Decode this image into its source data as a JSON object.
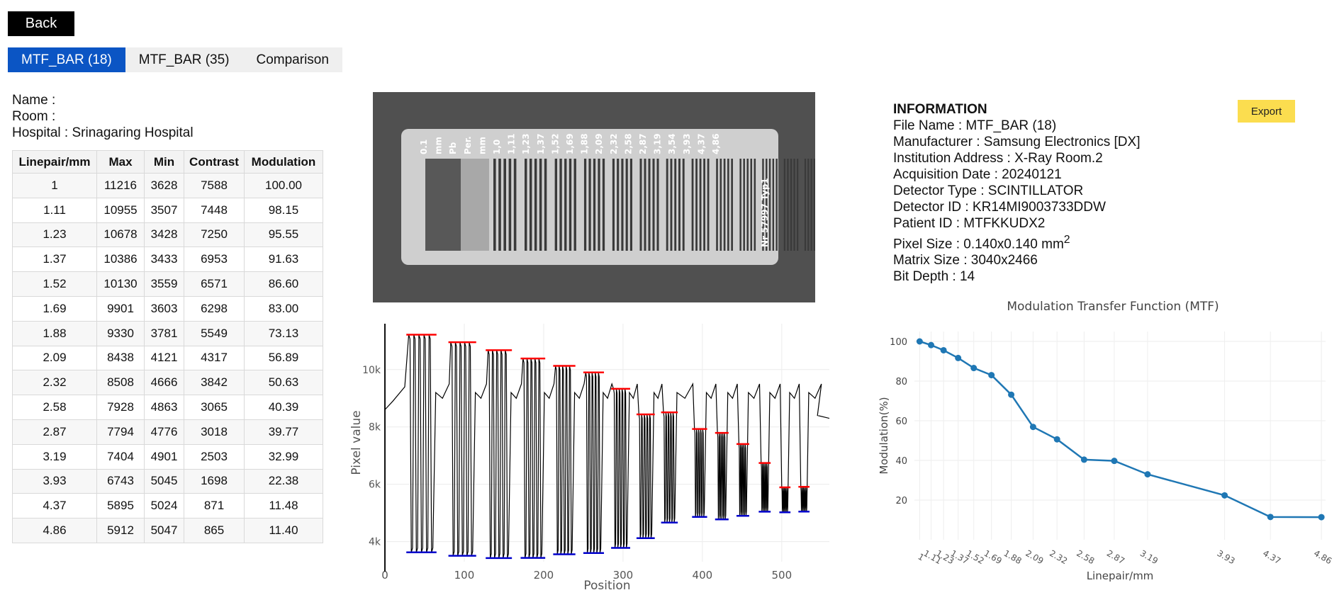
{
  "nav": {
    "back_label": "Back"
  },
  "tabs": [
    {
      "label": "MTF_BAR (18)",
      "active": true
    },
    {
      "label": "MTF_BAR (35)",
      "active": false
    },
    {
      "label": "Comparison",
      "active": false
    }
  ],
  "subject": {
    "name_line": "Name :",
    "room_line": "Room :",
    "hospital_line": "Hospital : Srinagaring Hospital"
  },
  "results_table": {
    "headers": [
      "Linepair/mm",
      "Max",
      "Min",
      "Contrast",
      "Modulation"
    ],
    "rows": [
      [
        "1",
        "11216",
        "3628",
        "7588",
        "100.00"
      ],
      [
        "1.11",
        "10955",
        "3507",
        "7448",
        "98.15"
      ],
      [
        "1.23",
        "10678",
        "3428",
        "7250",
        "95.55"
      ],
      [
        "1.37",
        "10386",
        "3433",
        "6953",
        "91.63"
      ],
      [
        "1.52",
        "10130",
        "3559",
        "6571",
        "86.60"
      ],
      [
        "1.69",
        "9901",
        "3603",
        "6298",
        "83.00"
      ],
      [
        "1.88",
        "9330",
        "3781",
        "5549",
        "73.13"
      ],
      [
        "2.09",
        "8438",
        "4121",
        "4317",
        "56.89"
      ],
      [
        "2.32",
        "8508",
        "4666",
        "3842",
        "50.63"
      ],
      [
        "2.58",
        "7928",
        "4863",
        "3065",
        "40.39"
      ],
      [
        "2.87",
        "7794",
        "4776",
        "3018",
        "39.77"
      ],
      [
        "3.19",
        "7404",
        "4901",
        "2503",
        "32.99"
      ],
      [
        "3.93",
        "6743",
        "5045",
        "1698",
        "22.38"
      ],
      [
        "4.37",
        "5895",
        "5024",
        "871",
        "11.48"
      ],
      [
        "4.86",
        "5912",
        "5047",
        "865",
        "11.40"
      ]
    ]
  },
  "phantom_image": {
    "labels": [
      "0.1",
      "mm",
      "Pb",
      "Per.",
      "mm",
      "1,0",
      "1,11",
      "1,23",
      "1,37",
      "1,52",
      "1,69",
      "1,88",
      "2,09",
      "2,32",
      "2,58",
      "2,87",
      "3,19",
      "3,54",
      "3,93",
      "4,37",
      "4,86"
    ],
    "side_label_1": "Typ1",
    "side_label_2": "Nr 57997"
  },
  "information": {
    "title": "INFORMATION",
    "file_name": "File Name : MTF_BAR (18)",
    "manufacturer": "Manufacturer : Samsung Electronics [DX]",
    "institution": "Institution Address : X-Ray Room.2",
    "acquisition_date": "Acquisition Date : 20240121",
    "detector_type": "Detector Type : SCINTILLATOR",
    "detector_id": "Detector ID : KR14MI9003733DDW",
    "patient_id": "Patient ID : MTFKKUDX2",
    "pixel_size": "Pixel Size : 0.140x0.140 mm",
    "pixel_size_sup": "2",
    "matrix_size": "Matrix Size : 3040x2466",
    "bit_depth": "Bit Depth : 14",
    "export_label": "Export"
  },
  "chart_data": [
    {
      "type": "line",
      "title": "",
      "xlabel": "Position",
      "ylabel": "Pixel value",
      "xlim": [
        0,
        560
      ],
      "ylim": [
        3300,
        11600
      ],
      "x_ticks": [
        0,
        100,
        200,
        300,
        400,
        500
      ],
      "x_tick_labels": [
        "0",
        "100",
        "200",
        "300",
        "400",
        "500"
      ],
      "y_ticks": [
        4000,
        6000,
        8000,
        10000
      ],
      "y_tick_labels": [
        "4k",
        "6k",
        "8k",
        "10k"
      ],
      "grid": true,
      "legend": "none",
      "groups": [
        {
          "x_start": 30,
          "x_end": 62,
          "bars": 5,
          "max": 11216,
          "min": 3628
        },
        {
          "x_start": 83,
          "x_end": 112,
          "bars": 5,
          "max": 10955,
          "min": 3507
        },
        {
          "x_start": 130,
          "x_end": 157,
          "bars": 5,
          "max": 10678,
          "min": 3428
        },
        {
          "x_start": 174,
          "x_end": 199,
          "bars": 5,
          "max": 10386,
          "min": 3433
        },
        {
          "x_start": 215,
          "x_end": 237,
          "bars": 5,
          "max": 10130,
          "min": 3559
        },
        {
          "x_start": 253,
          "x_end": 273,
          "bars": 5,
          "max": 9901,
          "min": 3603
        },
        {
          "x_start": 288,
          "x_end": 306,
          "bars": 5,
          "max": 9330,
          "min": 3781
        },
        {
          "x_start": 320,
          "x_end": 337,
          "bars": 5,
          "max": 8438,
          "min": 4121
        },
        {
          "x_start": 351,
          "x_end": 366,
          "bars": 5,
          "max": 8508,
          "min": 4666
        },
        {
          "x_start": 390,
          "x_end": 403,
          "bars": 5,
          "max": 7928,
          "min": 4863
        },
        {
          "x_start": 419,
          "x_end": 430,
          "bars": 5,
          "max": 7794,
          "min": 4776
        },
        {
          "x_start": 446,
          "x_end": 456,
          "bars": 5,
          "max": 7404,
          "min": 4901
        },
        {
          "x_start": 474,
          "x_end": 483,
          "bars": 5,
          "max": 6743,
          "min": 5045
        },
        {
          "x_start": 500,
          "x_end": 508,
          "bars": 5,
          "max": 5895,
          "min": 5024
        },
        {
          "x_start": 524,
          "x_end": 532,
          "bars": 5,
          "max": 5912,
          "min": 5047
        }
      ],
      "series": [
        {
          "color": "#000000"
        },
        {
          "color": "#ff0000"
        },
        {
          "color": "#0000cc"
        }
      ]
    },
    {
      "type": "line",
      "title": "Modulation Transfer Function (MTF)",
      "xlabel": "Linepair/mm",
      "ylabel": "Modulation(%)",
      "xlim": [
        0.95,
        4.9
      ],
      "ylim": [
        0,
        105
      ],
      "y_ticks": [
        20,
        40,
        60,
        80,
        100
      ],
      "x": [
        1,
        1.11,
        1.23,
        1.37,
        1.52,
        1.69,
        1.88,
        2.09,
        2.32,
        2.58,
        2.87,
        3.19,
        3.93,
        4.37,
        4.86
      ],
      "x_tick_labels": [
        "1",
        "1.11",
        "1.23",
        "1.37",
        "1.52",
        "1.69",
        "1.88",
        "2.09",
        "2.32",
        "2.58",
        "2.87",
        "3.19",
        "3.93",
        "4.37",
        "4.86"
      ],
      "values": [
        100.0,
        98.15,
        95.55,
        91.63,
        86.6,
        83.0,
        73.13,
        56.89,
        50.63,
        40.39,
        39.77,
        32.99,
        22.38,
        11.48,
        11.4
      ],
      "color": "#1f77b4",
      "grid": true,
      "legend": "none"
    }
  ]
}
